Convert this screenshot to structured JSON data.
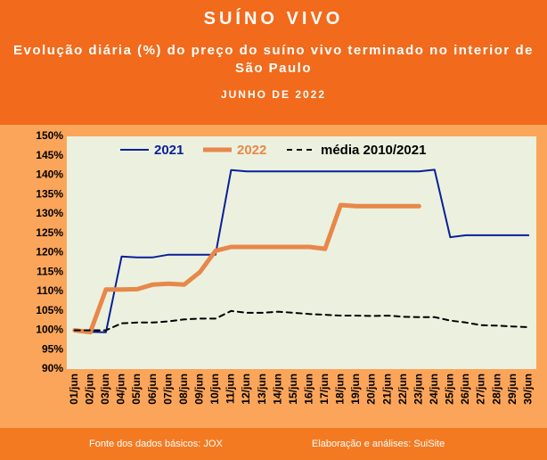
{
  "chart_data": {
    "type": "line",
    "title": "SUÍNO VIVO",
    "subtitle": "Evolução diária (%) do preço do suíno vivo terminado no interior de São Paulo",
    "period": "JUNHO DE 2022",
    "source": "Fonte dos dados básicos: JOX",
    "credits": "Elaboração e análises: SuiSite",
    "categories": [
      "01/jun",
      "02/jun",
      "03/jun",
      "04/jun",
      "05/jun",
      "06/jun",
      "07/jun",
      "08/jun",
      "09/jun",
      "10/jun",
      "11/jun",
      "12/jun",
      "13/jun",
      "14/jun",
      "15/jun",
      "16/jun",
      "17/jun",
      "18/jun",
      "19/jun",
      "20/jun",
      "21/jun",
      "22/jun",
      "23/jun",
      "24/jun",
      "25/jun",
      "26/jun",
      "27/jun",
      "28/jun",
      "29/jun",
      "30/jun"
    ],
    "series": [
      {
        "name": "2021",
        "color": "#0a1f9a",
        "width": 2,
        "dashed": false,
        "values": [
          100.2,
          99.6,
          99.5,
          119,
          118.8,
          118.8,
          119.5,
          119.5,
          119.5,
          119.5,
          141.3,
          141,
          141,
          141,
          141,
          141,
          141,
          141,
          141,
          141,
          141,
          141,
          141,
          141.4,
          124,
          124.5,
          124.5,
          124.5,
          124.5,
          124.5
        ]
      },
      {
        "name": "2022",
        "color": "#e8874a",
        "width": 5,
        "dashed": false,
        "values": [
          100,
          99.5,
          110.5,
          110.5,
          110.6,
          111.8,
          112,
          111.8,
          115,
          120.5,
          121.5,
          121.5,
          121.5,
          121.5,
          121.5,
          121.5,
          121,
          132.3,
          132,
          132,
          132,
          132,
          132,
          null,
          null,
          null,
          null,
          null,
          null,
          null
        ]
      },
      {
        "name": "média 2010/2021",
        "color": "#000000",
        "width": 2,
        "dashed": true,
        "values": [
          100,
          100,
          100,
          101.8,
          102,
          102,
          102.3,
          102.8,
          103,
          103,
          105,
          104.5,
          104.5,
          104.8,
          104.5,
          104.2,
          104,
          103.8,
          103.8,
          103.7,
          103.8,
          103.5,
          103.4,
          103.4,
          102.5,
          102,
          101.3,
          101.2,
          101,
          100.8
        ]
      }
    ],
    "ylim": [
      90,
      150
    ],
    "yticks": [
      {
        "value": 90,
        "label": "90%"
      },
      {
        "value": 95,
        "label": "95%"
      },
      {
        "value": 100,
        "label": "100%"
      },
      {
        "value": 105,
        "label": "105%"
      },
      {
        "value": 110,
        "label": "110%"
      },
      {
        "value": 115,
        "label": "115%"
      },
      {
        "value": 120,
        "label": "120%"
      },
      {
        "value": 125,
        "label": "125%"
      },
      {
        "value": 130,
        "label": "130%"
      },
      {
        "value": 135,
        "label": "135%"
      },
      {
        "value": 140,
        "label": "140%"
      },
      {
        "value": 145,
        "label": "145%"
      },
      {
        "value": 150,
        "label": "150%"
      }
    ],
    "grid": false
  }
}
